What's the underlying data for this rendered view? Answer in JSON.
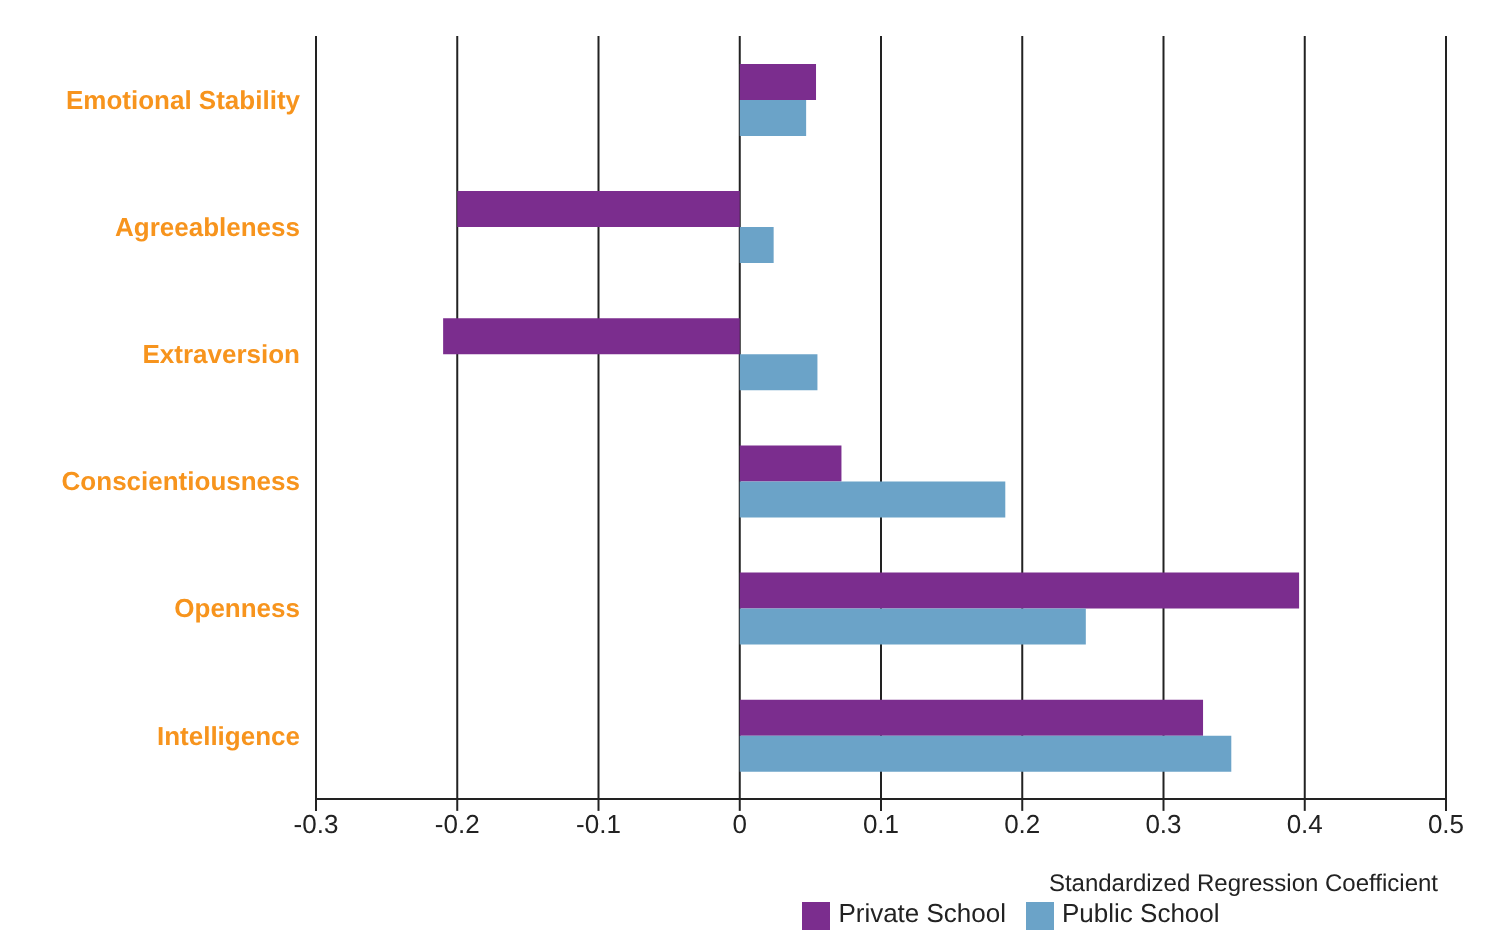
{
  "chart_data": {
    "type": "bar",
    "orientation": "horizontal",
    "categories": [
      "Emotional Stability",
      "Agreeableness",
      "Extraversion",
      "Conscientiousness",
      "Openness",
      "Intelligence"
    ],
    "series": [
      {
        "name": "Private School",
        "color": "#7b2d8e",
        "values": [
          0.054,
          -0.2,
          -0.21,
          0.072,
          0.396,
          0.328
        ]
      },
      {
        "name": "Public School",
        "color": "#6ba3c8",
        "values": [
          0.047,
          0.024,
          0.055,
          0.188,
          0.245,
          0.348
        ]
      }
    ],
    "xlim": [
      -0.3,
      0.5
    ],
    "xticks": [
      -0.3,
      -0.2,
      -0.1,
      0,
      0.1,
      0.2,
      0.3,
      0.4,
      0.5
    ],
    "xlabel": "Standardized Regression Coefficient",
    "grid": "x",
    "legend": "bottom"
  }
}
